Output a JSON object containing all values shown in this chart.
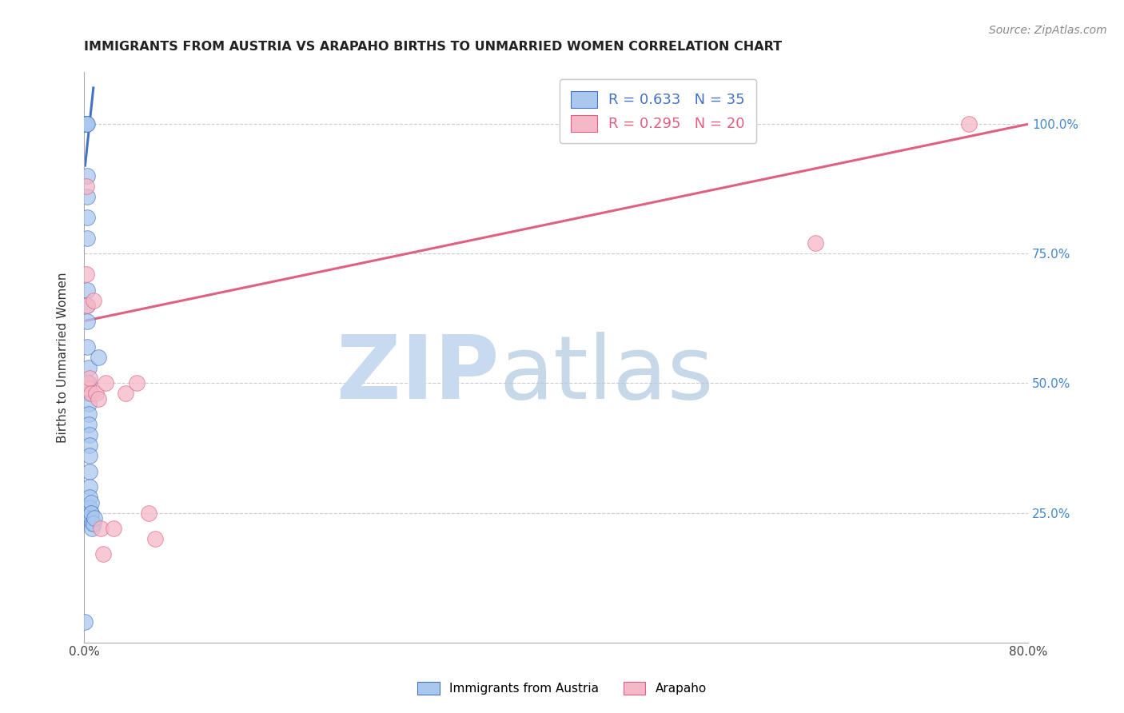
{
  "title": "IMMIGRANTS FROM AUSTRIA VS ARAPAHO BIRTHS TO UNMARRIED WOMEN CORRELATION CHART",
  "source": "Source: ZipAtlas.com",
  "ylabel": "Births to Unmarried Women",
  "ytick_labels": [
    "25.0%",
    "50.0%",
    "75.0%",
    "100.0%"
  ],
  "ytick_values": [
    0.25,
    0.5,
    0.75,
    1.0
  ],
  "xtick_values": [
    0.0,
    0.1,
    0.2,
    0.3,
    0.4,
    0.5,
    0.6,
    0.7,
    0.8
  ],
  "xlim": [
    0.0,
    0.8
  ],
  "ylim": [
    0.0,
    1.1
  ],
  "blue_scatter_x": [
    0.001,
    0.002,
    0.002,
    0.002,
    0.003,
    0.003,
    0.003,
    0.003,
    0.003,
    0.003,
    0.003,
    0.003,
    0.003,
    0.004,
    0.004,
    0.004,
    0.004,
    0.004,
    0.004,
    0.005,
    0.005,
    0.005,
    0.005,
    0.005,
    0.005,
    0.005,
    0.006,
    0.006,
    0.006,
    0.006,
    0.007,
    0.007,
    0.008,
    0.009,
    0.012
  ],
  "blue_scatter_y": [
    0.04,
    1.0,
    1.0,
    1.0,
    1.0,
    0.9,
    0.86,
    0.82,
    0.78,
    0.68,
    0.65,
    0.62,
    0.57,
    0.53,
    0.5,
    0.48,
    0.46,
    0.44,
    0.42,
    0.4,
    0.38,
    0.36,
    0.33,
    0.3,
    0.28,
    0.26,
    0.25,
    0.24,
    0.27,
    0.25,
    0.23,
    0.22,
    0.23,
    0.24,
    0.55
  ],
  "pink_scatter_x": [
    0.002,
    0.002,
    0.003,
    0.003,
    0.004,
    0.005,
    0.006,
    0.008,
    0.01,
    0.012,
    0.014,
    0.016,
    0.018,
    0.025,
    0.035,
    0.045,
    0.055,
    0.06,
    0.62,
    0.75
  ],
  "pink_scatter_y": [
    0.71,
    0.88,
    0.65,
    0.5,
    0.49,
    0.51,
    0.48,
    0.66,
    0.48,
    0.47,
    0.22,
    0.17,
    0.5,
    0.22,
    0.48,
    0.5,
    0.25,
    0.2,
    0.77,
    1.0
  ],
  "blue_line_x": [
    0.001,
    0.008
  ],
  "blue_line_y": [
    0.92,
    1.07
  ],
  "pink_line_x": [
    0.0,
    0.8
  ],
  "pink_line_y": [
    0.62,
    1.0
  ],
  "blue_R": "R = 0.633",
  "blue_N": "N = 35",
  "pink_R": "R = 0.295",
  "pink_N": "N = 20",
  "blue_color": "#aac8ee",
  "blue_line_color": "#4472c4",
  "pink_color": "#f4b8c8",
  "pink_line_color": "#e06080",
  "grid_color": "#cccccc",
  "title_color": "#222222",
  "legend_label_blue": "Immigrants from Austria",
  "legend_label_pink": "Arapaho"
}
